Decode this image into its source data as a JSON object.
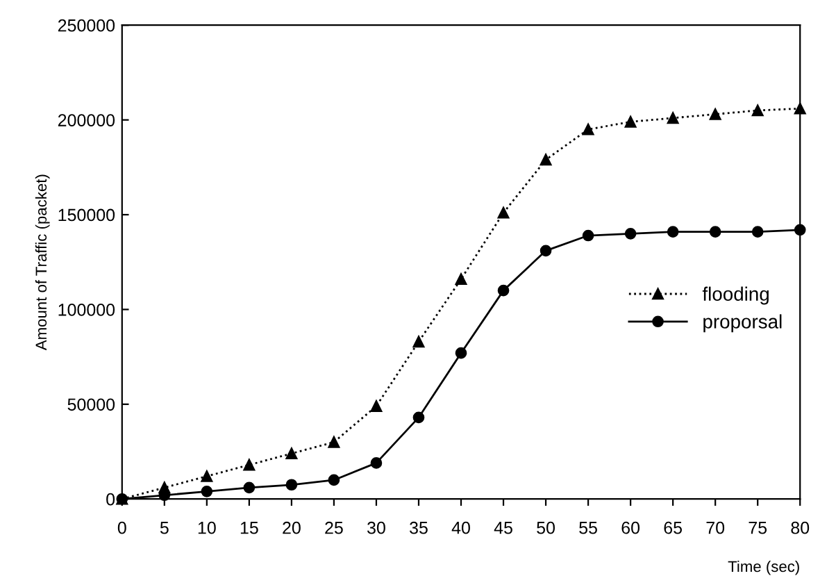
{
  "chart_data": {
    "type": "line",
    "xlabel": "Time (sec)",
    "ylabel": "Amount of Traffic (packet)",
    "x": [
      0,
      5,
      10,
      15,
      20,
      25,
      30,
      35,
      40,
      45,
      50,
      55,
      60,
      65,
      70,
      75,
      80
    ],
    "series": [
      {
        "name": "flooding",
        "color": "#000000",
        "marker": "triangle",
        "line_style": "dotted",
        "values": [
          0,
          6000,
          12000,
          18000,
          24000,
          30000,
          49000,
          83000,
          116000,
          151000,
          179000,
          195000,
          199000,
          201000,
          203000,
          205000,
          206000
        ]
      },
      {
        "name": "proporsal",
        "color": "#000000",
        "marker": "circle",
        "line_style": "solid",
        "values": [
          0,
          2000,
          4000,
          6000,
          7500,
          10000,
          19000,
          43000,
          77000,
          110000,
          131000,
          139000,
          140000,
          141000,
          141000,
          141000,
          142000
        ]
      }
    ],
    "xlim": [
      0,
      80
    ],
    "xticks": [
      0,
      5,
      10,
      15,
      20,
      25,
      30,
      35,
      40,
      45,
      50,
      55,
      60,
      65,
      70,
      75,
      80
    ],
    "ylim": [
      0,
      250000
    ],
    "yticks": [
      0,
      50000,
      100000,
      150000,
      200000,
      250000
    ],
    "grid": false,
    "legend": "center right"
  }
}
